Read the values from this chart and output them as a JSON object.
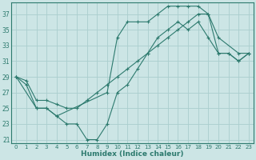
{
  "xlabel": "Humidex (Indice chaleur)",
  "ylabel": "",
  "xlim": [
    -0.5,
    23.5
  ],
  "ylim": [
    20.5,
    38.5
  ],
  "yticks": [
    21,
    23,
    25,
    27,
    29,
    31,
    33,
    35,
    37
  ],
  "xticks": [
    0,
    1,
    2,
    3,
    4,
    5,
    6,
    7,
    8,
    9,
    10,
    11,
    12,
    13,
    14,
    15,
    16,
    17,
    18,
    19,
    20,
    21,
    22,
    23
  ],
  "bg_color": "#cce5e5",
  "grid_color": "#aacece",
  "line_color": "#2d7a6e",
  "line1_x": [
    0,
    1,
    2,
    3,
    4,
    5,
    6,
    7,
    8,
    9,
    10,
    11,
    12,
    13,
    14,
    15,
    16,
    17,
    18,
    19,
    20,
    21,
    22,
    23
  ],
  "line1_y": [
    29,
    28,
    25,
    25,
    24,
    23,
    23,
    21,
    21,
    23,
    27,
    28,
    30,
    32,
    34,
    35,
    36,
    35,
    36,
    34,
    32,
    32,
    31,
    32
  ],
  "line2_x": [
    0,
    1,
    2,
    3,
    4,
    5,
    6,
    7,
    8,
    9,
    10,
    11,
    12,
    13,
    14,
    15,
    16,
    17,
    18,
    19,
    20,
    21,
    22,
    23
  ],
  "line2_y": [
    29,
    28.5,
    26,
    26,
    25.5,
    25,
    25,
    26,
    27,
    28,
    29,
    30,
    31,
    32,
    33,
    34,
    35,
    36,
    37,
    37,
    32,
    32,
    31,
    32
  ],
  "line3_x": [
    0,
    2,
    3,
    4,
    9,
    10,
    11,
    12,
    13,
    14,
    15,
    16,
    17,
    18,
    19,
    20,
    22,
    23
  ],
  "line3_y": [
    29,
    25,
    25,
    24,
    27,
    34,
    36,
    36,
    36,
    37,
    38,
    38,
    38,
    38,
    37,
    34,
    32,
    32
  ]
}
